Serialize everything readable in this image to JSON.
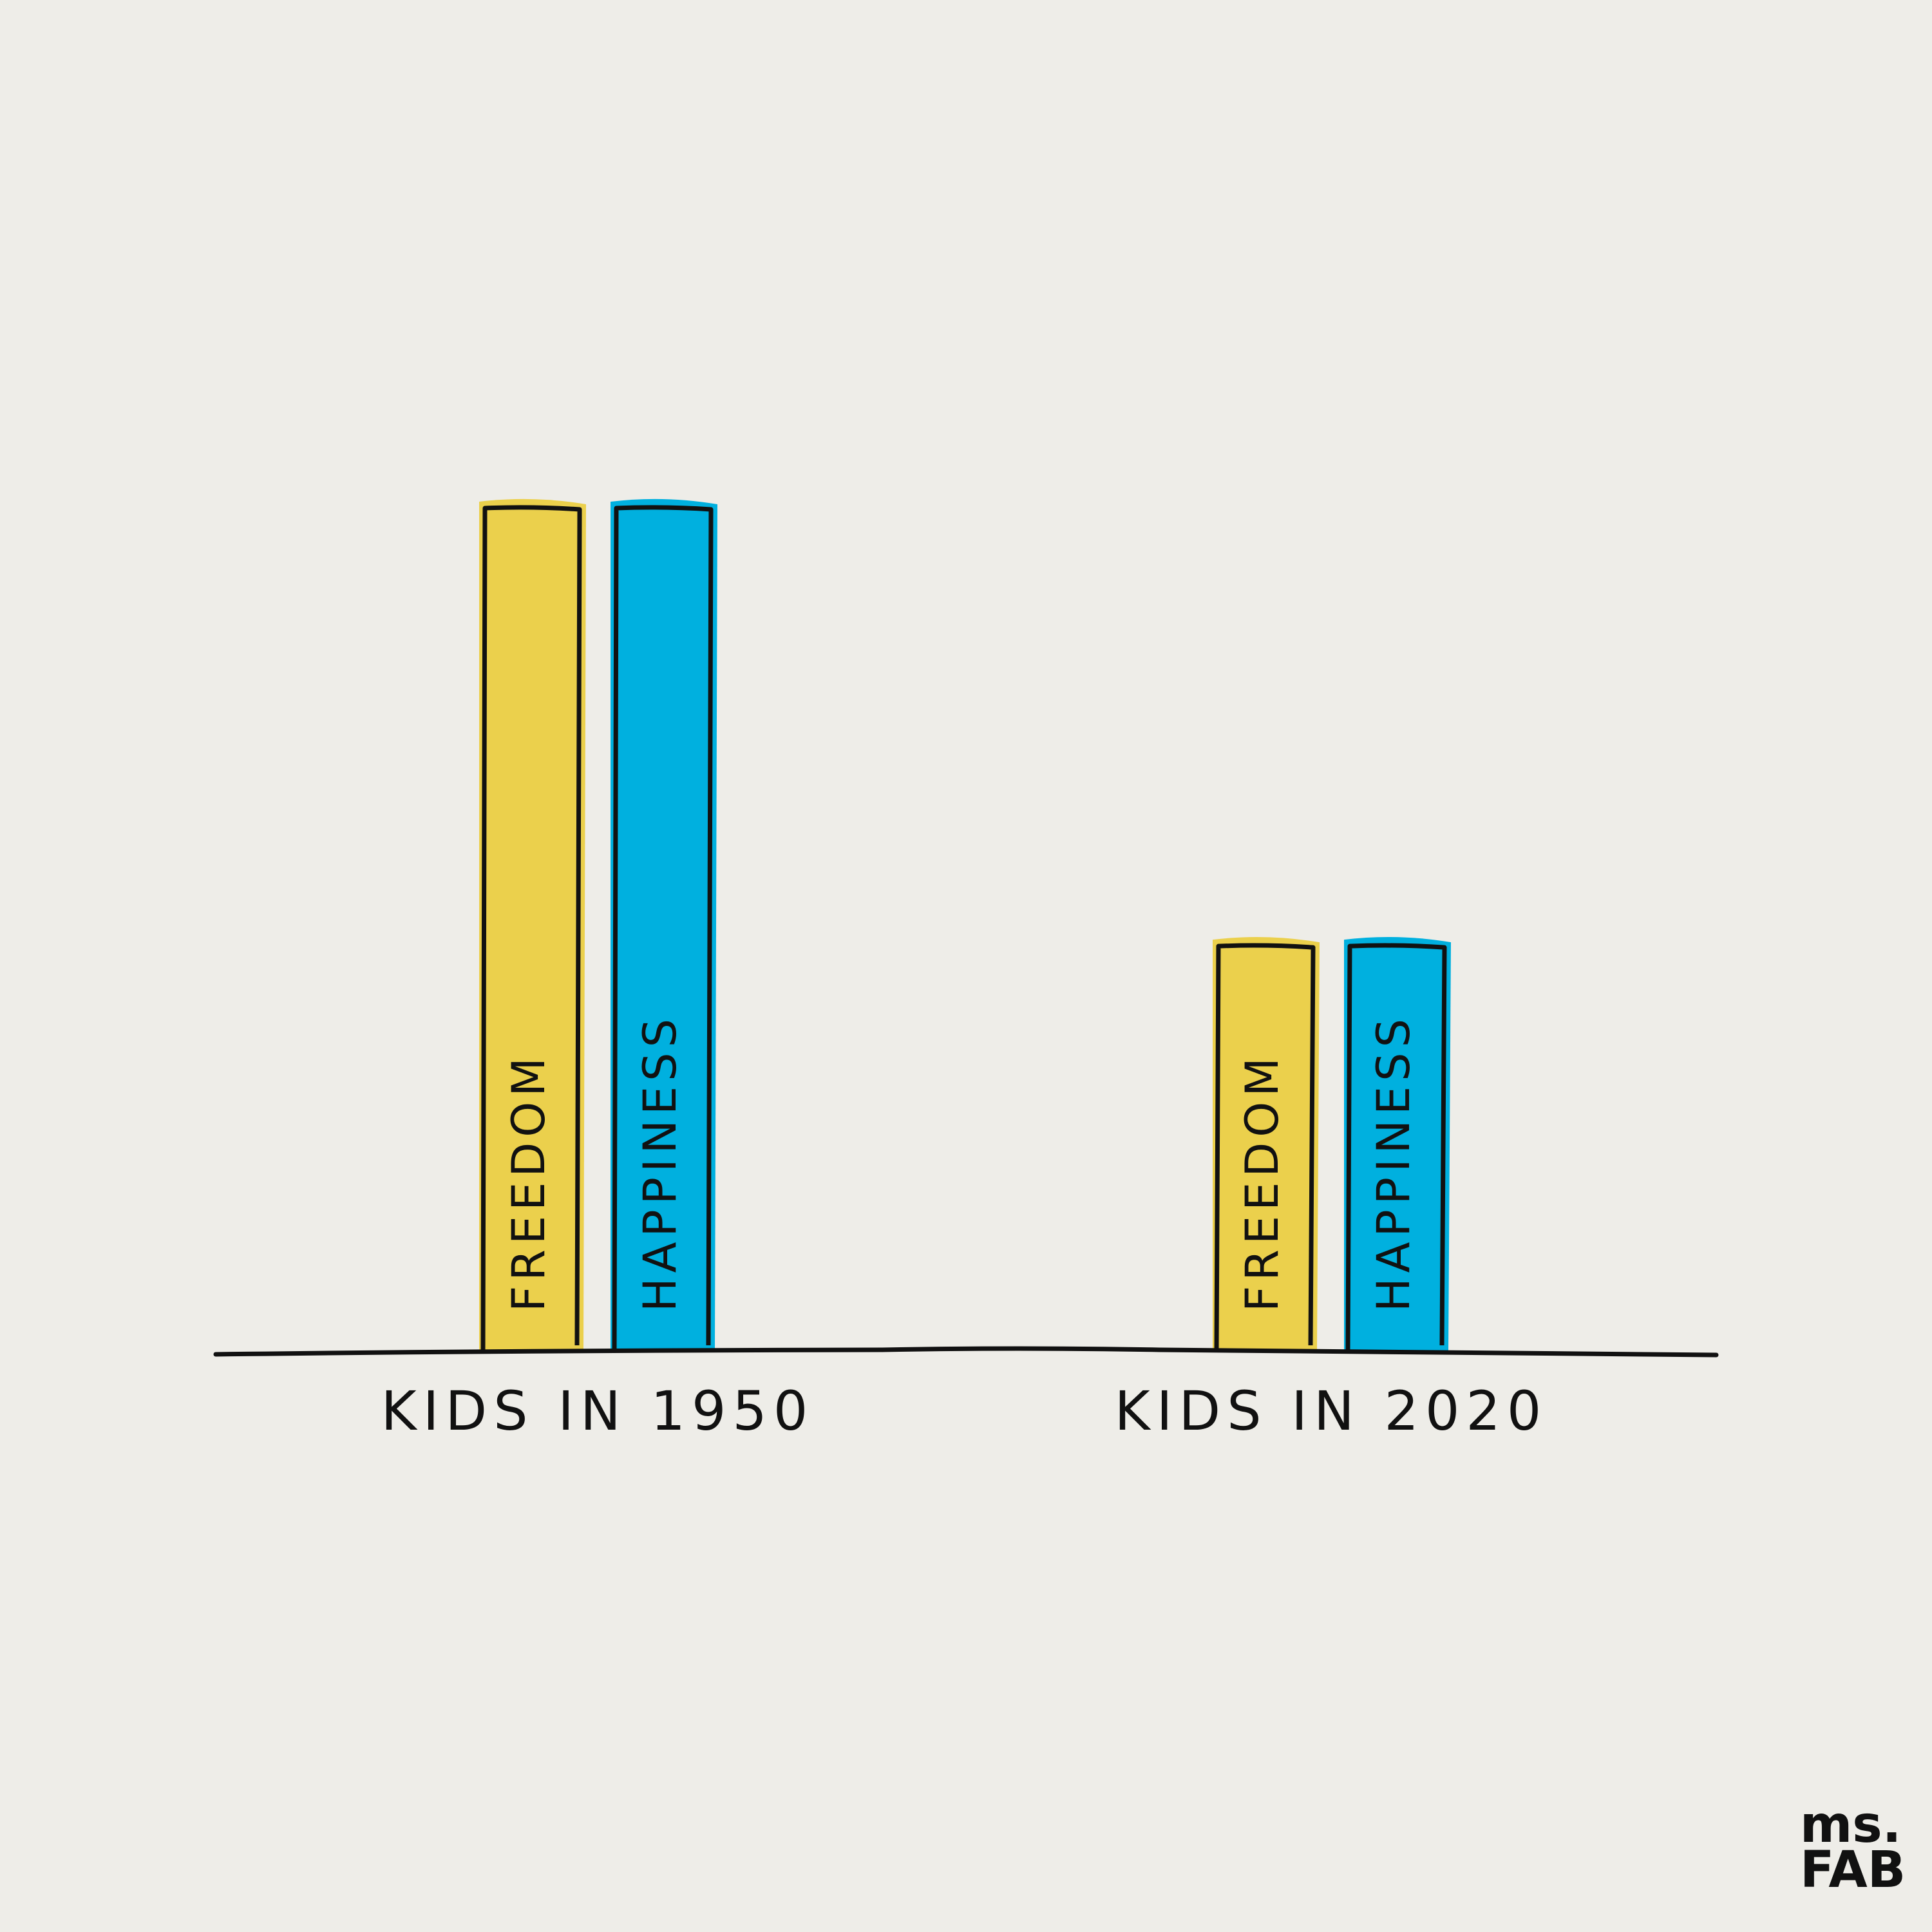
{
  "chart_data": {
    "type": "bar",
    "categories": [
      "KIDS IN 1950",
      "KIDS IN 2020"
    ],
    "series": [
      {
        "name": "FREEDOM",
        "color": "#ebd04c",
        "values": [
          100,
          48
        ]
      },
      {
        "name": "HAPPINESS",
        "color": "#00b0df",
        "values": [
          100,
          48
        ]
      }
    ]
  },
  "logo": {
    "line1": "ms.",
    "line2": "FAB"
  }
}
